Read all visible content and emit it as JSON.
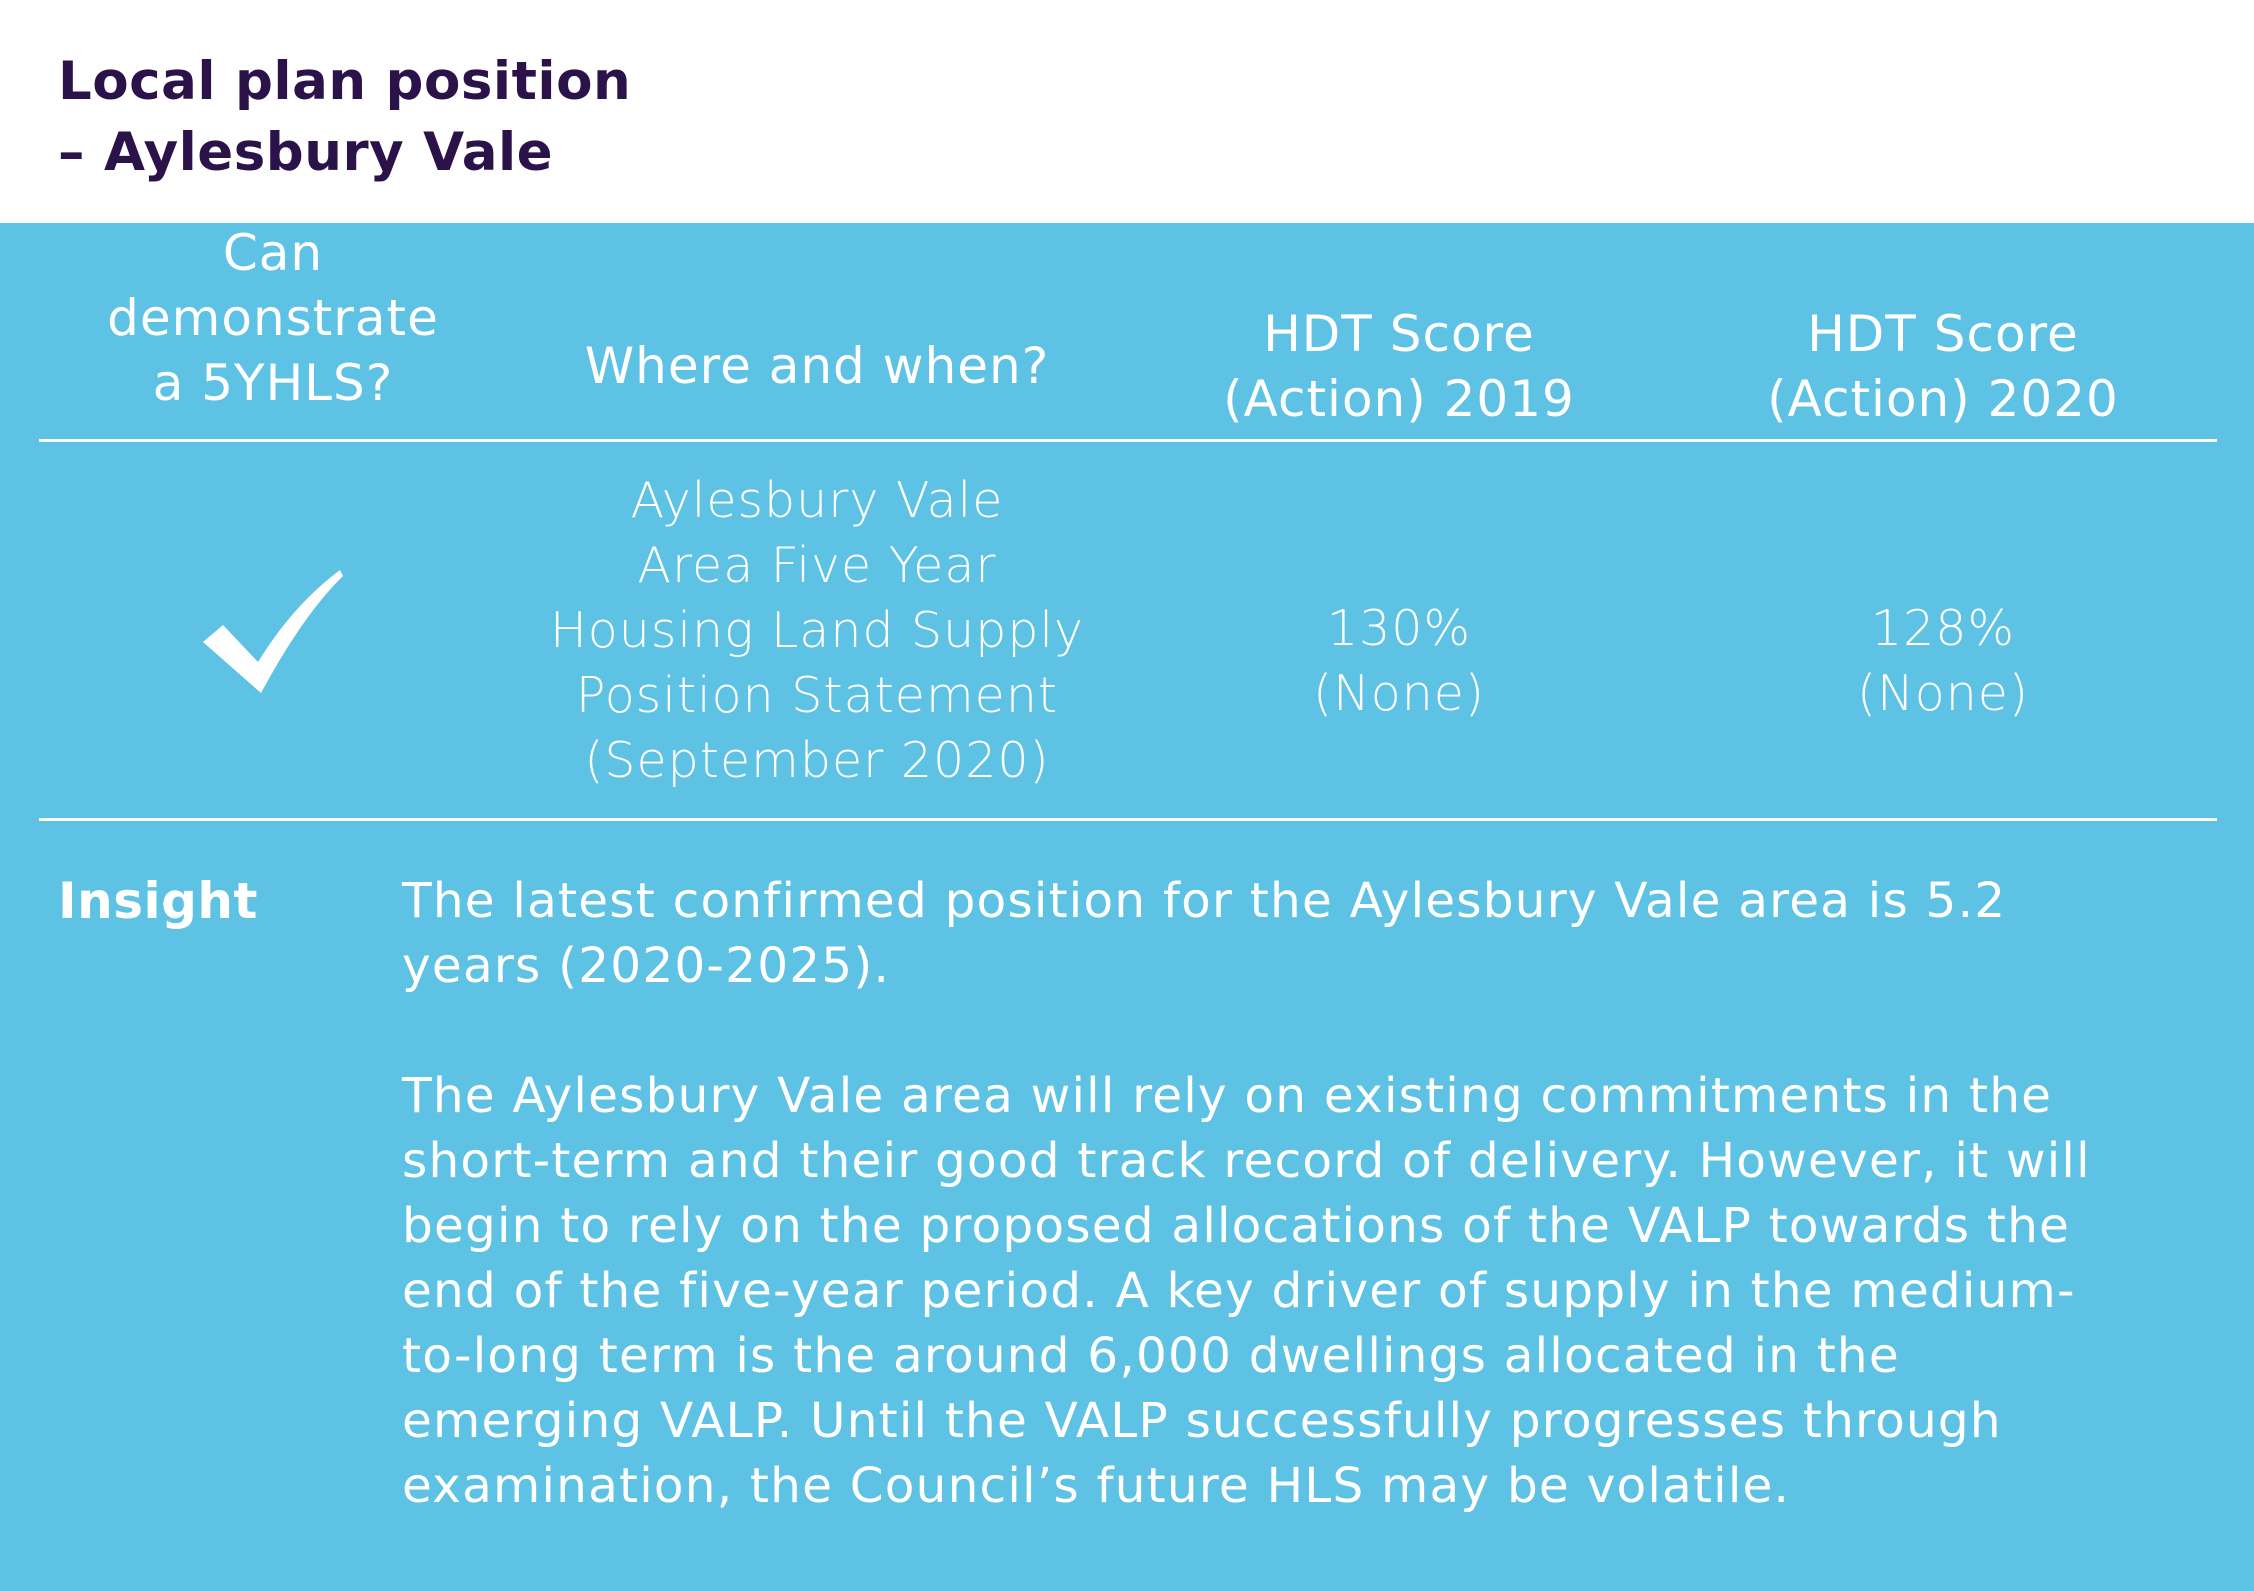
{
  "title": {
    "line1": "Local plan position",
    "line2": "– Aylesbury Vale"
  },
  "table": {
    "headers": [
      {
        "lines": [
          "Can",
          "demonstrate",
          "a 5YHLS?"
        ]
      },
      {
        "lines": [
          "Where and when?"
        ]
      },
      {
        "lines": [
          "HDT Score",
          "(Action) 2019"
        ]
      },
      {
        "lines": [
          "HDT Score",
          "(Action) 2020"
        ]
      }
    ],
    "row": {
      "five_yhls_icon": "checkmark-icon",
      "where_when": [
        "Aylesbury Vale",
        "Area Five Year",
        "Housing Land Supply",
        "Position Statement",
        "(September 2020)"
      ],
      "hdt_2019": [
        "130%",
        "(None)"
      ],
      "hdt_2020": [
        "128%",
        "(None)"
      ]
    }
  },
  "insight": {
    "label": "Insight",
    "paragraphs": [
      [
        "The latest confirmed position for the Aylesbury Vale area is 5.2",
        "years (2020-2025)."
      ],
      [
        "The Aylesbury Vale area will rely on existing commitments in the",
        "short-term and their good track record of delivery. However, it will",
        "begin to rely on the proposed allocations of the VALP towards the",
        "end of the five-year period. A key driver of supply in the medium-",
        "to-long term is the around 6,000 dwellings allocated in the",
        "emerging VALP. Until the VALP successfully progresses through",
        "examination, the Council’s future HLS may be volatile."
      ]
    ]
  },
  "colors": {
    "panel": "#5dc2e4",
    "title": "#2b1248",
    "text": "#ffffff"
  }
}
